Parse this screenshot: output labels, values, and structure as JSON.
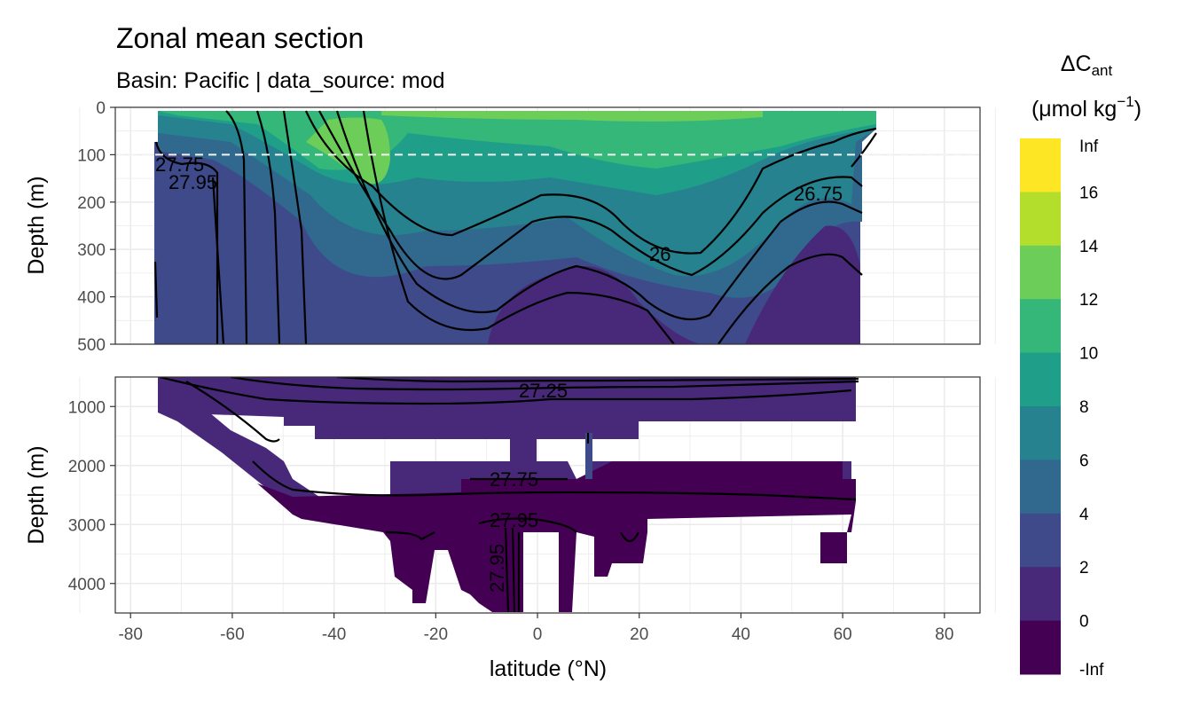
{
  "chart_data": {
    "type": "heatmap",
    "title": "Zonal mean section",
    "subtitle": "Basin: Pacific | data_source: mod",
    "xlabel": "latitude (°N)",
    "ylabel": "Depth (m)",
    "xlim": [
      -83,
      87
    ],
    "x_ticks": [
      "-80",
      "-60",
      "-40",
      "-20",
      "0",
      "20",
      "40",
      "60",
      "80"
    ],
    "reference_line": {
      "depth": 100,
      "style": "dashed",
      "color": "#f2f2f2"
    },
    "panels": [
      {
        "name": "upper",
        "ylim": [
          0,
          500
        ],
        "y_ticks": [
          "0",
          "100",
          "200",
          "300",
          "400",
          "500"
        ],
        "contour_labels": [
          "27.75",
          "27.95",
          "26.75",
          "26"
        ]
      },
      {
        "name": "lower",
        "ylim": [
          500,
          4500
        ],
        "y_ticks": [
          "1000",
          "2000",
          "3000",
          "4000"
        ],
        "contour_labels": [
          "27.25",
          "27.75",
          "27.95",
          "27.95"
        ]
      }
    ],
    "legend": {
      "title": "ΔC",
      "title_subscript": "ant",
      "unit_prefix": "(μmol kg",
      "unit_exponent": "−1",
      "unit_suffix": ")",
      "placement": "right",
      "labels": [
        "Inf",
        "16",
        "14",
        "12",
        "10",
        "8",
        "6",
        "4",
        "2",
        "0",
        "-Inf"
      ],
      "colors": [
        "#FDE725",
        "#B4DE2C",
        "#6DCD59",
        "#35B779",
        "#1F9E89",
        "#26828E",
        "#31688E",
        "#3E4A89",
        "#482878",
        "#440154"
      ]
    }
  }
}
